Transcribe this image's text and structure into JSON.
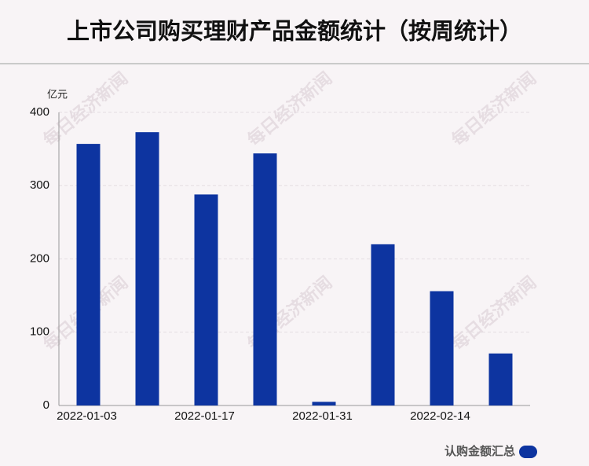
{
  "chart_data": {
    "type": "bar",
    "title": "上市公司购买理财产品金额统计（按周统计）",
    "y_unit": "亿元",
    "watermark": "每日经济新闻",
    "categories": [
      "2022-01-03",
      null,
      "2022-01-17",
      null,
      "2022-01-31",
      null,
      "2022-02-14",
      null
    ],
    "series": [
      {
        "name": "认购金额汇总",
        "color": "#0d34a0",
        "values": [
          357,
          373,
          288,
          344,
          5,
          220,
          156,
          71
        ]
      }
    ],
    "ylim": [
      0,
      400
    ],
    "yticks": [
      0,
      100,
      200,
      300,
      400
    ],
    "grid": true,
    "legend": "bottom-right"
  }
}
